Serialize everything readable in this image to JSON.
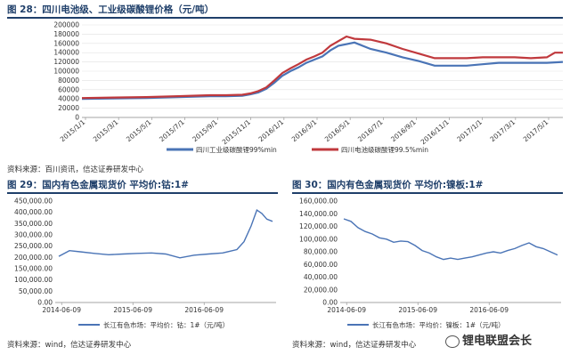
{
  "fig28": {
    "title": "图 28：四川电池级、工业级碳酸锂价格（元/吨）",
    "source": "资料来源：百川资讯，信达证券研发中心",
    "colors": {
      "s1": "#4a74b6",
      "s2": "#c0393d"
    }
  },
  "fig29": {
    "title": "图 29：国内有色金属现货价 平均价:钴:1#",
    "source": "资料来源：wind，信达证券研发中心",
    "colors": {
      "s1": "#4a74b6"
    }
  },
  "fig30": {
    "title": "图 30：国内有色金属现货价 平均价:镍板:1#",
    "source": "资料来源：wind，信达证券研发中心",
    "colors": {
      "s1": "#4a74b6"
    }
  },
  "watermark": "锂电联盟会长",
  "chart_data": [
    {
      "type": "line",
      "ylim": [
        0,
        200000
      ],
      "yticks": [
        "0",
        "20000",
        "40000",
        "60000",
        "80000",
        "100000",
        "120000",
        "140000",
        "160000",
        "180000",
        "200000"
      ],
      "xticks": [
        "2015/1/1",
        "2015/3/1",
        "2015/5/1",
        "2015/7/1",
        "2015/9/1",
        "2015/11/1",
        "2016/1/1",
        "2016/3/1",
        "2016/5/1",
        "2016/7/1",
        "2016/9/1",
        "2016/11/1",
        "2017/1/1",
        "2017/3/1",
        "2017/5/1"
      ],
      "series": [
        {
          "name": "四川工业级碳酸锂99%min",
          "x": [
            0,
            2,
            4,
            6,
            8,
            9,
            10,
            10.5,
            11,
            11.5,
            12,
            12.5,
            13,
            13.5,
            14,
            14.5,
            15,
            15.5,
            16,
            17,
            18,
            19,
            20,
            21,
            22,
            23,
            24,
            25,
            26,
            27,
            28,
            29,
            30
          ],
          "values": [
            40000,
            41000,
            42000,
            44000,
            46000,
            46000,
            47000,
            50000,
            54000,
            62000,
            75000,
            90000,
            100000,
            108000,
            118000,
            125000,
            132000,
            145000,
            155000,
            162000,
            148000,
            140000,
            130000,
            122000,
            112000,
            112000,
            112000,
            115000,
            118000,
            118000,
            118000,
            118000,
            120000
          ]
        },
        {
          "name": "四川电池级碳酸锂99.5%min",
          "x": [
            0,
            2,
            4,
            6,
            8,
            9,
            10,
            10.5,
            11,
            11.5,
            12,
            12.5,
            13,
            13.5,
            14,
            14.5,
            15,
            15.5,
            16,
            16.5,
            17,
            18,
            19,
            20,
            21,
            22,
            23,
            24,
            25,
            26,
            27,
            28,
            29,
            29.5,
            30
          ],
          "values": [
            42000,
            43000,
            44000,
            46000,
            48000,
            48000,
            49000,
            52000,
            57000,
            65000,
            80000,
            96000,
            106000,
            115000,
            125000,
            132000,
            140000,
            155000,
            165000,
            175000,
            170000,
            168000,
            160000,
            148000,
            138000,
            128000,
            128000,
            128000,
            130000,
            130000,
            130000,
            128000,
            130000,
            140000,
            140000
          ]
        }
      ]
    },
    {
      "type": "line",
      "ylim": [
        0,
        450000
      ],
      "yticks": [
        "0.00",
        "50,000.00",
        "100,000.00",
        "150,000.00",
        "200,000.00",
        "250,000.00",
        "300,000.00",
        "350,000.00",
        "400,000.00",
        "450,000.00"
      ],
      "xticks": [
        "2014-06-09",
        "2015-06-09",
        "2016-06-09"
      ],
      "series": [
        {
          "name": "长江有色市场：平均价：钴：1#（元/吨）",
          "x": [
            2014.4,
            2014.55,
            2014.7,
            2014.9,
            2015.1,
            2015.3,
            2015.5,
            2015.7,
            2015.9,
            2016.1,
            2016.3,
            2016.5,
            2016.7,
            2016.9,
            2017.0,
            2017.1,
            2017.18,
            2017.25,
            2017.32,
            2017.4
          ],
          "values": [
            205000,
            230000,
            225000,
            218000,
            212000,
            215000,
            218000,
            220000,
            215000,
            198000,
            210000,
            215000,
            220000,
            235000,
            270000,
            340000,
            410000,
            395000,
            370000,
            360000
          ]
        }
      ]
    },
    {
      "type": "line",
      "ylim": [
        0,
        160000
      ],
      "yticks": [
        "0.00",
        "20,000.00",
        "40,000.00",
        "60,000.00",
        "80,000.00",
        "100,000.00",
        "120,000.00",
        "140,000.00",
        "160,000.00"
      ],
      "xticks": [
        "2014-06-09",
        "2015-06-09",
        "2016-06-09"
      ],
      "series": [
        {
          "name": "长江有色市场：平均价：镍板：1#（元/吨）",
          "x": [
            2014.4,
            2014.5,
            2014.6,
            2014.7,
            2014.8,
            2014.9,
            2015.0,
            2015.1,
            2015.2,
            2015.3,
            2015.4,
            2015.5,
            2015.6,
            2015.7,
            2015.8,
            2015.9,
            2016.0,
            2016.1,
            2016.2,
            2016.3,
            2016.4,
            2016.5,
            2016.6,
            2016.7,
            2016.8,
            2016.9,
            2017.0,
            2017.1,
            2017.2,
            2017.3,
            2017.4
          ],
          "values": [
            132000,
            128000,
            118000,
            112000,
            108000,
            102000,
            100000,
            95000,
            97000,
            96000,
            90000,
            82000,
            78000,
            72000,
            68000,
            70000,
            68000,
            70000,
            72000,
            75000,
            78000,
            80000,
            78000,
            82000,
            85000,
            90000,
            94000,
            88000,
            85000,
            80000,
            75000
          ]
        }
      ]
    }
  ]
}
